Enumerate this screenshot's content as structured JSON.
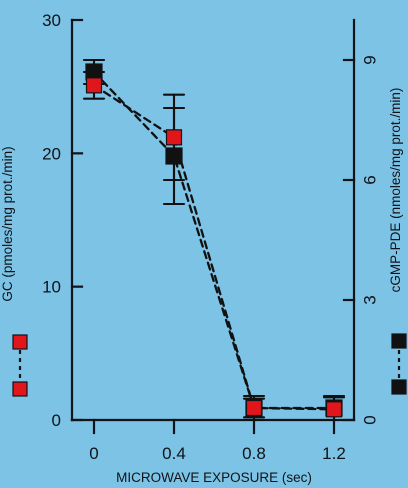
{
  "chart_data": {
    "type": "line",
    "xlabel": "MICROWAVE EXPOSURE (sec)",
    "x": [
      0,
      0.4,
      0.8,
      1.2
    ],
    "x_tick_labels": [
      "0",
      "0.4",
      "0.8",
      "1.2"
    ],
    "left_axis": {
      "label": "GC (pmoles/mg prot./min)",
      "range": [
        0,
        30
      ],
      "ticks": [
        0,
        10,
        20,
        30
      ],
      "tick_labels": [
        "0",
        "10",
        "20",
        "30"
      ]
    },
    "right_axis": {
      "label": "cGMP-PDE (nmoles/mg prot./min)",
      "range": [
        0,
        10
      ],
      "ticks": [
        0,
        3,
        6,
        9
      ],
      "tick_labels": [
        "0",
        "3",
        "6",
        "9"
      ]
    },
    "series": [
      {
        "axis": "left",
        "values": [
          25.1,
          21.2,
          0.9,
          0.8
        ],
        "error": [
          1.0,
          3.2,
          0.7,
          0.9
        ],
        "color": "#e0161b",
        "marker": "square"
      },
      {
        "axis": "right",
        "values": [
          8.7,
          6.6,
          0.3,
          0.3
        ],
        "error": [
          0.3,
          1.2,
          0.3,
          0.3
        ],
        "color": "#111111",
        "marker": "square"
      }
    ],
    "legend": [
      {
        "axis": "left",
        "color": "#e0161b",
        "marker": "square"
      },
      {
        "axis": "right",
        "color": "#111111",
        "marker": "square"
      }
    ],
    "grid": false,
    "legend_placement": "beside axis labels"
  }
}
